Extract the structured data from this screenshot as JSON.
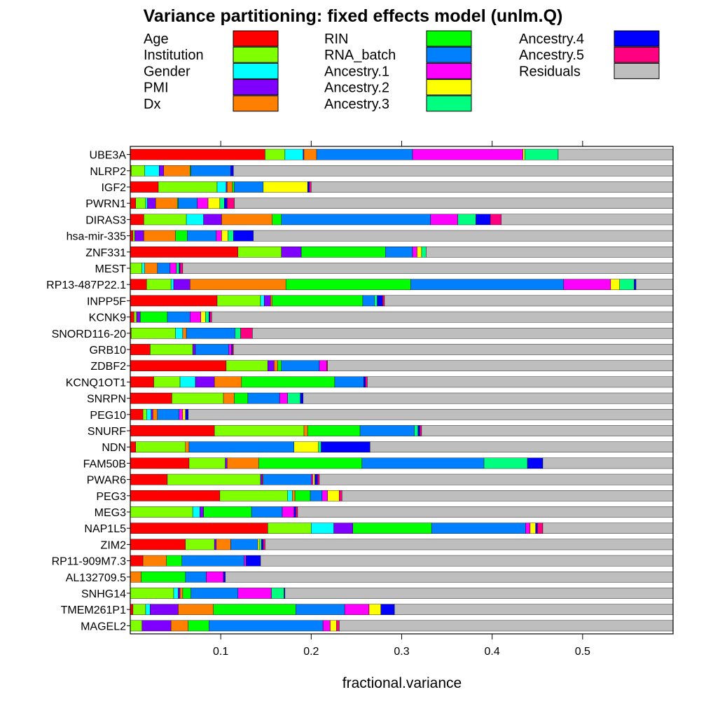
{
  "chart_data": {
    "type": "bar",
    "orientation": "horizontal",
    "stacked": true,
    "title": "Variance partitioning: fixed effects model (unlm.Q)",
    "xlabel": "fractional.variance",
    "xlim": [
      0,
      0.6
    ],
    "x_ticks": [
      0.1,
      0.2,
      0.3,
      0.4,
      0.5
    ],
    "x_tick_labels": [
      "0.1",
      "0.2",
      "0.3",
      "0.4",
      "0.5"
    ],
    "legend_placement": "top",
    "series": [
      {
        "name": "Age",
        "color": "#ff0000"
      },
      {
        "name": "Institution",
        "color": "#80ff00"
      },
      {
        "name": "Gender",
        "color": "#00ffff"
      },
      {
        "name": "PMI",
        "color": "#8000ff"
      },
      {
        "name": "Dx",
        "color": "#ff8000"
      },
      {
        "name": "RIN",
        "color": "#00ff00"
      },
      {
        "name": "RNA_batch",
        "color": "#0080ff"
      },
      {
        "name": "Ancestry.1",
        "color": "#ff00ff"
      },
      {
        "name": "Ancestry.2",
        "color": "#ffff00"
      },
      {
        "name": "Ancestry.3",
        "color": "#00ff80"
      },
      {
        "name": "Ancestry.4",
        "color": "#0000ff"
      },
      {
        "name": "Ancestry.5",
        "color": "#ff0080"
      },
      {
        "name": "Residuals",
        "color": "#bebebe"
      }
    ],
    "categories": [
      "UBE3A",
      "NLRP2",
      "IGF2",
      "PWRN1",
      "DIRAS3",
      "hsa-mir-335",
      "ZNF331",
      "MEST",
      "RP13-487P22.1",
      "INPP5F",
      "KCNK9",
      "SNORD116-20",
      "GRB10",
      "ZDBF2",
      "KCNQ1OT1",
      "SNRPN",
      "PEG10",
      "SNURF",
      "NDN",
      "FAM50B",
      "PWAR6",
      "PEG3",
      "MEG3",
      "NAP1L5",
      "ZIM2",
      "RP11-909M7.3",
      "AL132709.5",
      "SNHG14",
      "TMEM261P1",
      "MAGEL2"
    ],
    "values": [
      [
        0.149,
        0.022,
        0.02,
        0.001,
        0.014,
        0.0,
        0.106,
        0.122,
        0.002,
        0.037,
        0.0,
        0.0,
        0.527
      ],
      [
        0.001,
        0.015,
        0.016,
        0.005,
        0.029,
        0.001,
        0.044,
        0.0,
        0.0,
        0.0,
        0.003,
        0.0,
        0.859
      ],
      [
        0.031,
        0.065,
        0.01,
        0.001,
        0.006,
        0.002,
        0.032,
        0.0,
        0.049,
        0.0,
        0.002,
        0.002,
        0.8
      ],
      [
        0.006,
        0.011,
        0.002,
        0.009,
        0.024,
        0.001,
        0.021,
        0.012,
        0.013,
        0.005,
        0.003,
        0.008,
        0.885
      ],
      [
        0.015,
        0.047,
        0.019,
        0.02,
        0.056,
        0.01,
        0.165,
        0.03,
        0.0,
        0.02,
        0.016,
        0.012,
        0.59
      ],
      [
        0.003,
        0.002,
        0.0,
        0.01,
        0.035,
        0.013,
        0.032,
        0.006,
        0.007,
        0.006,
        0.022,
        0.0,
        0.864
      ],
      [
        0.119,
        0.048,
        0.0,
        0.022,
        0.0,
        0.093,
        0.03,
        0.005,
        0.005,
        0.005,
        0.0,
        0.0,
        0.673
      ],
      [
        0.0,
        0.013,
        0.003,
        0.0,
        0.014,
        0.0,
        0.014,
        0.007,
        0.0,
        0.003,
        0.001,
        0.003,
        0.942
      ],
      [
        0.018,
        0.027,
        0.003,
        0.018,
        0.106,
        0.138,
        0.169,
        0.052,
        0.01,
        0.016,
        0.002,
        0.0,
        0.441
      ],
      [
        0.096,
        0.048,
        0.004,
        0.007,
        0.002,
        0.1,
        0.013,
        0.0,
        0.0,
        0.003,
        0.006,
        0.002,
        0.719
      ],
      [
        0.004,
        0.003,
        0.0,
        0.004,
        0.0,
        0.03,
        0.025,
        0.012,
        0.005,
        0.004,
        0.001,
        0.002,
        0.91
      ],
      [
        0.001,
        0.049,
        0.008,
        0.0,
        0.004,
        0.0,
        0.054,
        0.0,
        0.0,
        0.006,
        0.0,
        0.013,
        0.865
      ],
      [
        0.022,
        0.047,
        0.0,
        0.003,
        0.0,
        0.0,
        0.037,
        0.003,
        0.0,
        0.0,
        0.001,
        0.001,
        0.886
      ],
      [
        0.106,
        0.046,
        0.0,
        0.007,
        0.004,
        0.004,
        0.042,
        0.008,
        0.0,
        0.0,
        0.0,
        0.001,
        0.782
      ],
      [
        0.026,
        0.029,
        0.017,
        0.021,
        0.03,
        0.103,
        0.032,
        0.0,
        0.0,
        0.0,
        0.002,
        0.002,
        0.738
      ],
      [
        0.046,
        0.057,
        0.0,
        0.0,
        0.012,
        0.015,
        0.035,
        0.009,
        0.0,
        0.014,
        0.003,
        0.0,
        0.809
      ],
      [
        0.014,
        0.004,
        0.005,
        0.002,
        0.005,
        0.0,
        0.024,
        0.004,
        0.003,
        0.0,
        0.003,
        0.0,
        0.936
      ],
      [
        0.093,
        0.099,
        0.0,
        0.0,
        0.004,
        0.058,
        0.06,
        0.0,
        0.0,
        0.004,
        0.002,
        0.002,
        0.678
      ],
      [
        0.006,
        0.055,
        0.0,
        0.0,
        0.004,
        0.0,
        0.116,
        0.0,
        0.027,
        0.003,
        0.054,
        0.0,
        0.735
      ],
      [
        0.065,
        0.04,
        0.0,
        0.002,
        0.035,
        0.114,
        0.135,
        0.0,
        0.0,
        0.048,
        0.017,
        0.0,
        0.544
      ],
      [
        0.041,
        0.103,
        0.0,
        0.002,
        0.001,
        0.0,
        0.053,
        0.002,
        0.002,
        0.0,
        0.003,
        0.002,
        0.791
      ],
      [
        0.099,
        0.075,
        0.005,
        0.0,
        0.003,
        0.017,
        0.013,
        0.006,
        0.013,
        0.0,
        0.0,
        0.003,
        0.766
      ],
      [
        0.0,
        0.069,
        0.008,
        0.004,
        0.0,
        0.053,
        0.034,
        0.013,
        0.0,
        0.0,
        0.002,
        0.002,
        0.815
      ],
      [
        0.152,
        0.048,
        0.025,
        0.021,
        0.0,
        0.087,
        0.104,
        0.005,
        0.006,
        0.0,
        0.002,
        0.006,
        0.544
      ],
      [
        0.061,
        0.032,
        0.0,
        0.002,
        0.016,
        0.0,
        0.03,
        0.0,
        0.002,
        0.002,
        0.002,
        0.002,
        0.851
      ],
      [
        0.014,
        0.0,
        0.0,
        0.0,
        0.026,
        0.017,
        0.069,
        0.002,
        0.0,
        0.0,
        0.016,
        0.0,
        0.856
      ],
      [
        0.0,
        0.0,
        0.0,
        0.0,
        0.012,
        0.049,
        0.023,
        0.019,
        0.0,
        0.0,
        0.002,
        0.0,
        0.895
      ],
      [
        0.0,
        0.048,
        0.005,
        0.002,
        0.003,
        0.009,
        0.052,
        0.037,
        0.0,
        0.014,
        0.001,
        0.0,
        0.829
      ],
      [
        0.003,
        0.014,
        0.005,
        0.031,
        0.039,
        0.091,
        0.054,
        0.027,
        0.013,
        0.0,
        0.015,
        0.0,
        0.708
      ],
      [
        0.0,
        0.013,
        0.0,
        0.032,
        0.019,
        0.023,
        0.126,
        0.008,
        0.007,
        0.0,
        0.0,
        0.003,
        0.769
      ]
    ]
  }
}
